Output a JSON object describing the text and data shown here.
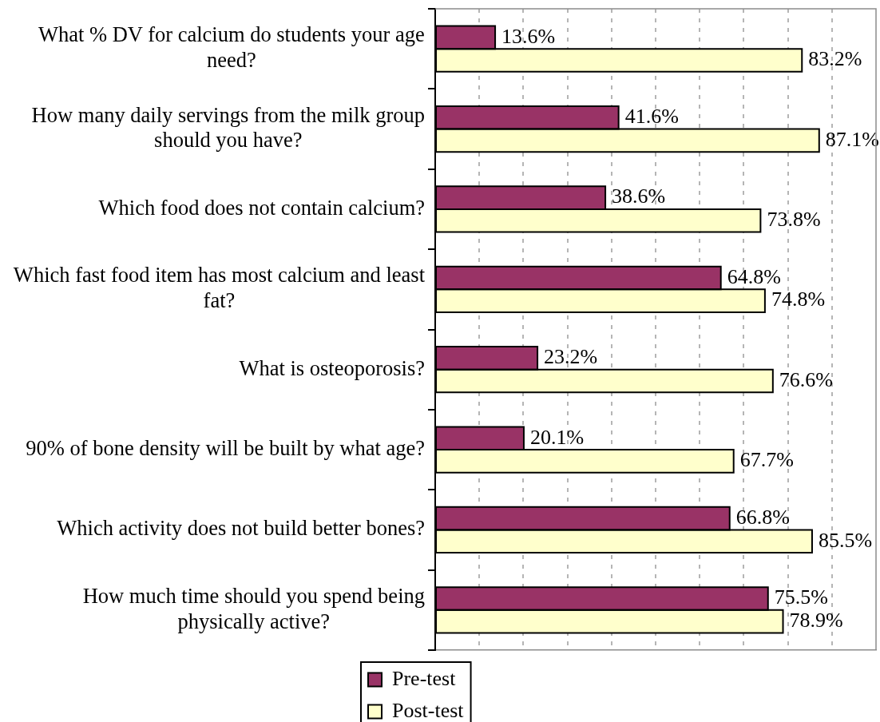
{
  "chart_data": {
    "type": "bar",
    "orientation": "horizontal",
    "categories": [
      "What % DV for calcium do students your age need?",
      "How many daily servings from the milk group should you have?",
      "Which food does not contain calcium?",
      "Which fast food item has most calcium and least fat?",
      "What is osteoporosis?",
      "90% of bone density will be built by what age?",
      "Which activity does not build better bones?",
      "How much time should you spend being physically active?"
    ],
    "series": [
      {
        "name": "Pre-test",
        "color": "#993366",
        "values": [
          13.6,
          41.6,
          38.6,
          64.8,
          23.2,
          20.1,
          66.8,
          75.5
        ],
        "value_labels": [
          "13.6%",
          "41.6%",
          "38.6%",
          "64.8%",
          "23.2%",
          "20.1%",
          "66.8%",
          "75.5%"
        ]
      },
      {
        "name": "Post-test",
        "color": "#ffffcc",
        "values": [
          83.2,
          87.1,
          73.8,
          74.8,
          76.6,
          67.7,
          85.5,
          78.9
        ],
        "value_labels": [
          "83.2%",
          "87.1%",
          "73.8%",
          "74.8%",
          "76.6%",
          "67.7%",
          "85.5%",
          "78.9%"
        ]
      }
    ],
    "xlim": [
      0,
      100
    ],
    "xticks": [
      {
        "value": 0,
        "label": null
      },
      {
        "value": 10,
        "label": null
      },
      {
        "value": 20,
        "label": null
      },
      {
        "value": 30,
        "label": null
      },
      {
        "value": 40,
        "label": null
      },
      {
        "value": 50,
        "label": null
      },
      {
        "value": 60,
        "label": null
      },
      {
        "value": 70,
        "label": null
      },
      {
        "value": 80,
        "label": null
      },
      {
        "value": 90,
        "label": null
      }
    ],
    "grid": "x",
    "legend": "bottom",
    "tick_labels": "y"
  }
}
